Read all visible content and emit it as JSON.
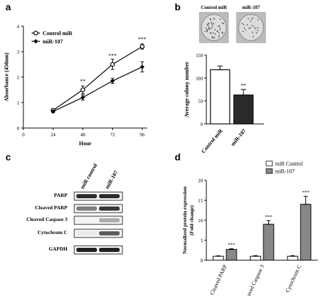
{
  "panels": {
    "a": "a",
    "b": "b",
    "c": "c",
    "d": "d"
  },
  "chart_data": [
    {
      "panel": "a",
      "type": "line",
      "xlabel": "Hour",
      "ylabel": "Absorbance (450nm)",
      "x": [
        0,
        24,
        48,
        72,
        96
      ],
      "x_ticks": [
        "0",
        "24",
        "48",
        "72",
        "96"
      ],
      "y_ticks": [
        "0",
        "1",
        "2",
        "3",
        "4"
      ],
      "xlim": [
        0,
        100
      ],
      "ylim": [
        0,
        4
      ],
      "series": [
        {
          "name": "Control miR",
          "marker": "open-circle",
          "x": [
            24,
            48,
            72,
            96
          ],
          "values": [
            0.7,
            1.5,
            2.5,
            3.2
          ],
          "errors": [
            0.05,
            0.15,
            0.2,
            0.1
          ]
        },
        {
          "name": "miR-107",
          "marker": "filled-diamond",
          "x": [
            24,
            48,
            72,
            96
          ],
          "values": [
            0.65,
            1.2,
            1.85,
            2.4
          ],
          "errors": [
            0.05,
            0.1,
            0.1,
            0.2
          ]
        }
      ],
      "annotations": [
        {
          "x": 48,
          "y": 1.85,
          "text": "**"
        },
        {
          "x": 72,
          "y": 2.85,
          "text": "***"
        },
        {
          "x": 96,
          "y": 3.5,
          "text": "***"
        }
      ]
    },
    {
      "panel": "b",
      "type": "bar",
      "ylabel": "Average colony number",
      "categories": [
        "Control miR",
        "miR-107"
      ],
      "values": [
        118,
        63
      ],
      "errors": [
        8,
        12
      ],
      "bar_colors": [
        "#ffffff",
        "#2a2a2a"
      ],
      "y_ticks": [
        "0",
        "50",
        "100",
        "150"
      ],
      "ylim": [
        0,
        150
      ],
      "annotations": [
        {
          "index": 1,
          "text": "**"
        }
      ],
      "image_labels": [
        "Control miR",
        "miR-107"
      ]
    },
    {
      "panel": "d",
      "type": "bar",
      "ylabel_lines": [
        "Normalized protein expression",
        "(Fold change)"
      ],
      "categories": [
        "Cleaved PARP",
        "Cleaved Caspase 3",
        "Cytochrom C"
      ],
      "series": [
        {
          "name": "miR Control",
          "color": "#ffffff",
          "values": [
            1.0,
            1.0,
            1.0
          ],
          "errors": [
            0.1,
            0.15,
            0.15
          ]
        },
        {
          "name": "miR-107",
          "color": "#888888",
          "values": [
            2.7,
            9.0,
            14.0
          ],
          "errors": [
            0.2,
            0.9,
            2.0
          ]
        }
      ],
      "y_ticks": [
        "0",
        "5",
        "10",
        "15",
        "20"
      ],
      "ylim": [
        0,
        20
      ],
      "annotations": [
        {
          "index": 0,
          "text": "***"
        },
        {
          "index": 1,
          "text": "***"
        },
        {
          "index": 2,
          "text": "***"
        }
      ]
    }
  ],
  "blot": {
    "columns": [
      "miR control",
      "miR-107"
    ],
    "rows": [
      {
        "label": "PARP",
        "bands": [
          0.9,
          0.9
        ]
      },
      {
        "label": "Cleaved PARP",
        "bands": [
          0.55,
          0.85
        ]
      },
      {
        "label": "Cleaved Caspase 3",
        "bands": [
          0.0,
          0.35
        ]
      },
      {
        "label": "Cytochrom C",
        "bands": [
          0.1,
          0.7
        ]
      },
      {
        "label": "GAPDH",
        "bands": [
          0.95,
          0.95
        ]
      }
    ]
  }
}
